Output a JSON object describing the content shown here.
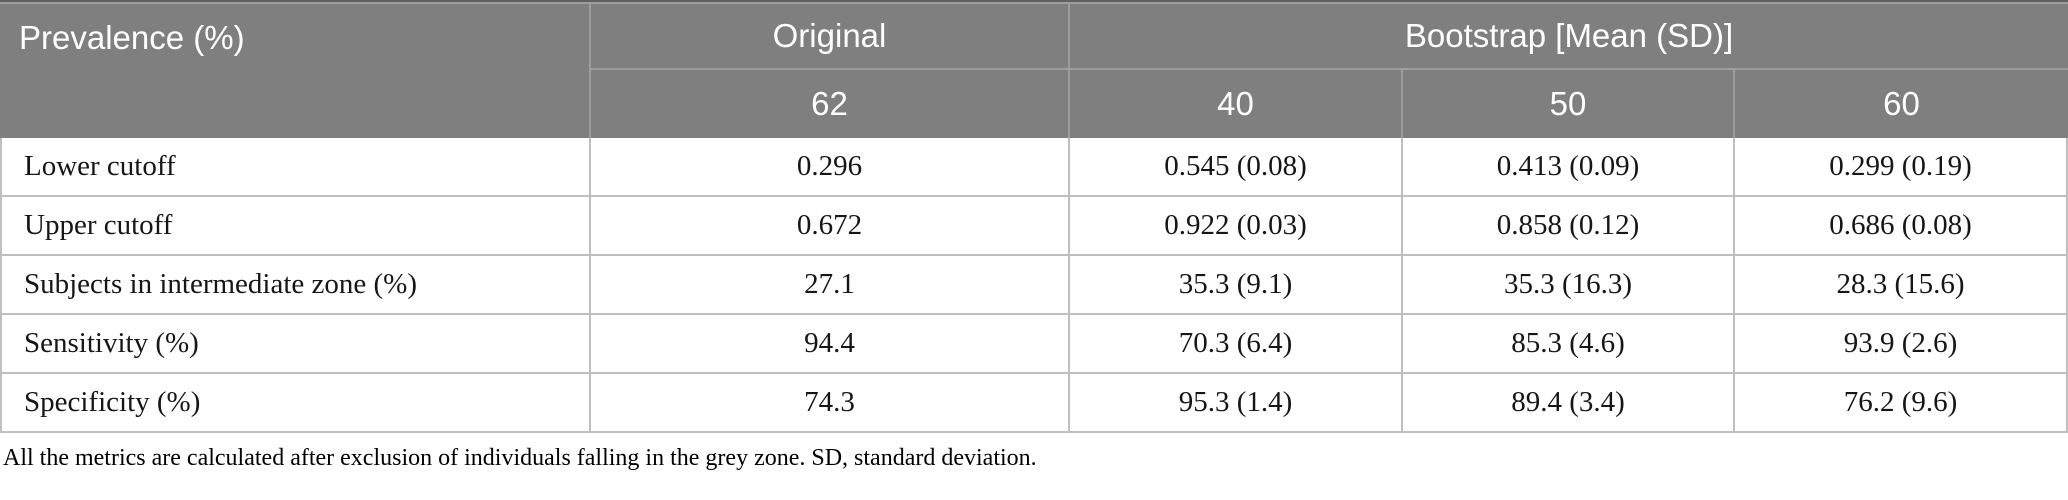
{
  "table": {
    "header": {
      "prevalence": "Prevalence (%)",
      "original": "Original",
      "bootstrap": "Bootstrap [Mean (SD)]",
      "sub": [
        "62",
        "40",
        "50",
        "60"
      ]
    },
    "rows": [
      {
        "label": "Lower cutoff",
        "values": [
          "0.296",
          "0.545 (0.08)",
          "0.413 (0.09)",
          "0.299 (0.19)"
        ]
      },
      {
        "label": "Upper cutoff",
        "values": [
          "0.672",
          "0.922 (0.03)",
          "0.858 (0.12)",
          "0.686 (0.08)"
        ]
      },
      {
        "label": "Subjects in intermediate zone (%)",
        "values": [
          "27.1",
          "35.3 (9.1)",
          "35.3 (16.3)",
          "28.3 (15.6)"
        ]
      },
      {
        "label": "Sensitivity (%)",
        "values": [
          "94.4",
          "70.3 (6.4)",
          "85.3 (4.6)",
          "93.9 (2.6)"
        ]
      },
      {
        "label": "Specificity (%)",
        "values": [
          "74.3",
          "95.3 (1.4)",
          "89.4 (3.4)",
          "76.2 (9.6)"
        ]
      }
    ],
    "footnote": "All the metrics are calculated after exclusion of individuals falling in the grey zone. SD, standard deviation.",
    "colors": {
      "header_bg": "#7f7f7f",
      "header_line": "#9d9d9d",
      "header_top": "#5f5f5f",
      "body_line": "#bfbfbf",
      "header_text": "#ffffff",
      "body_text": "#161616",
      "page_bg": "#ffffff"
    }
  }
}
